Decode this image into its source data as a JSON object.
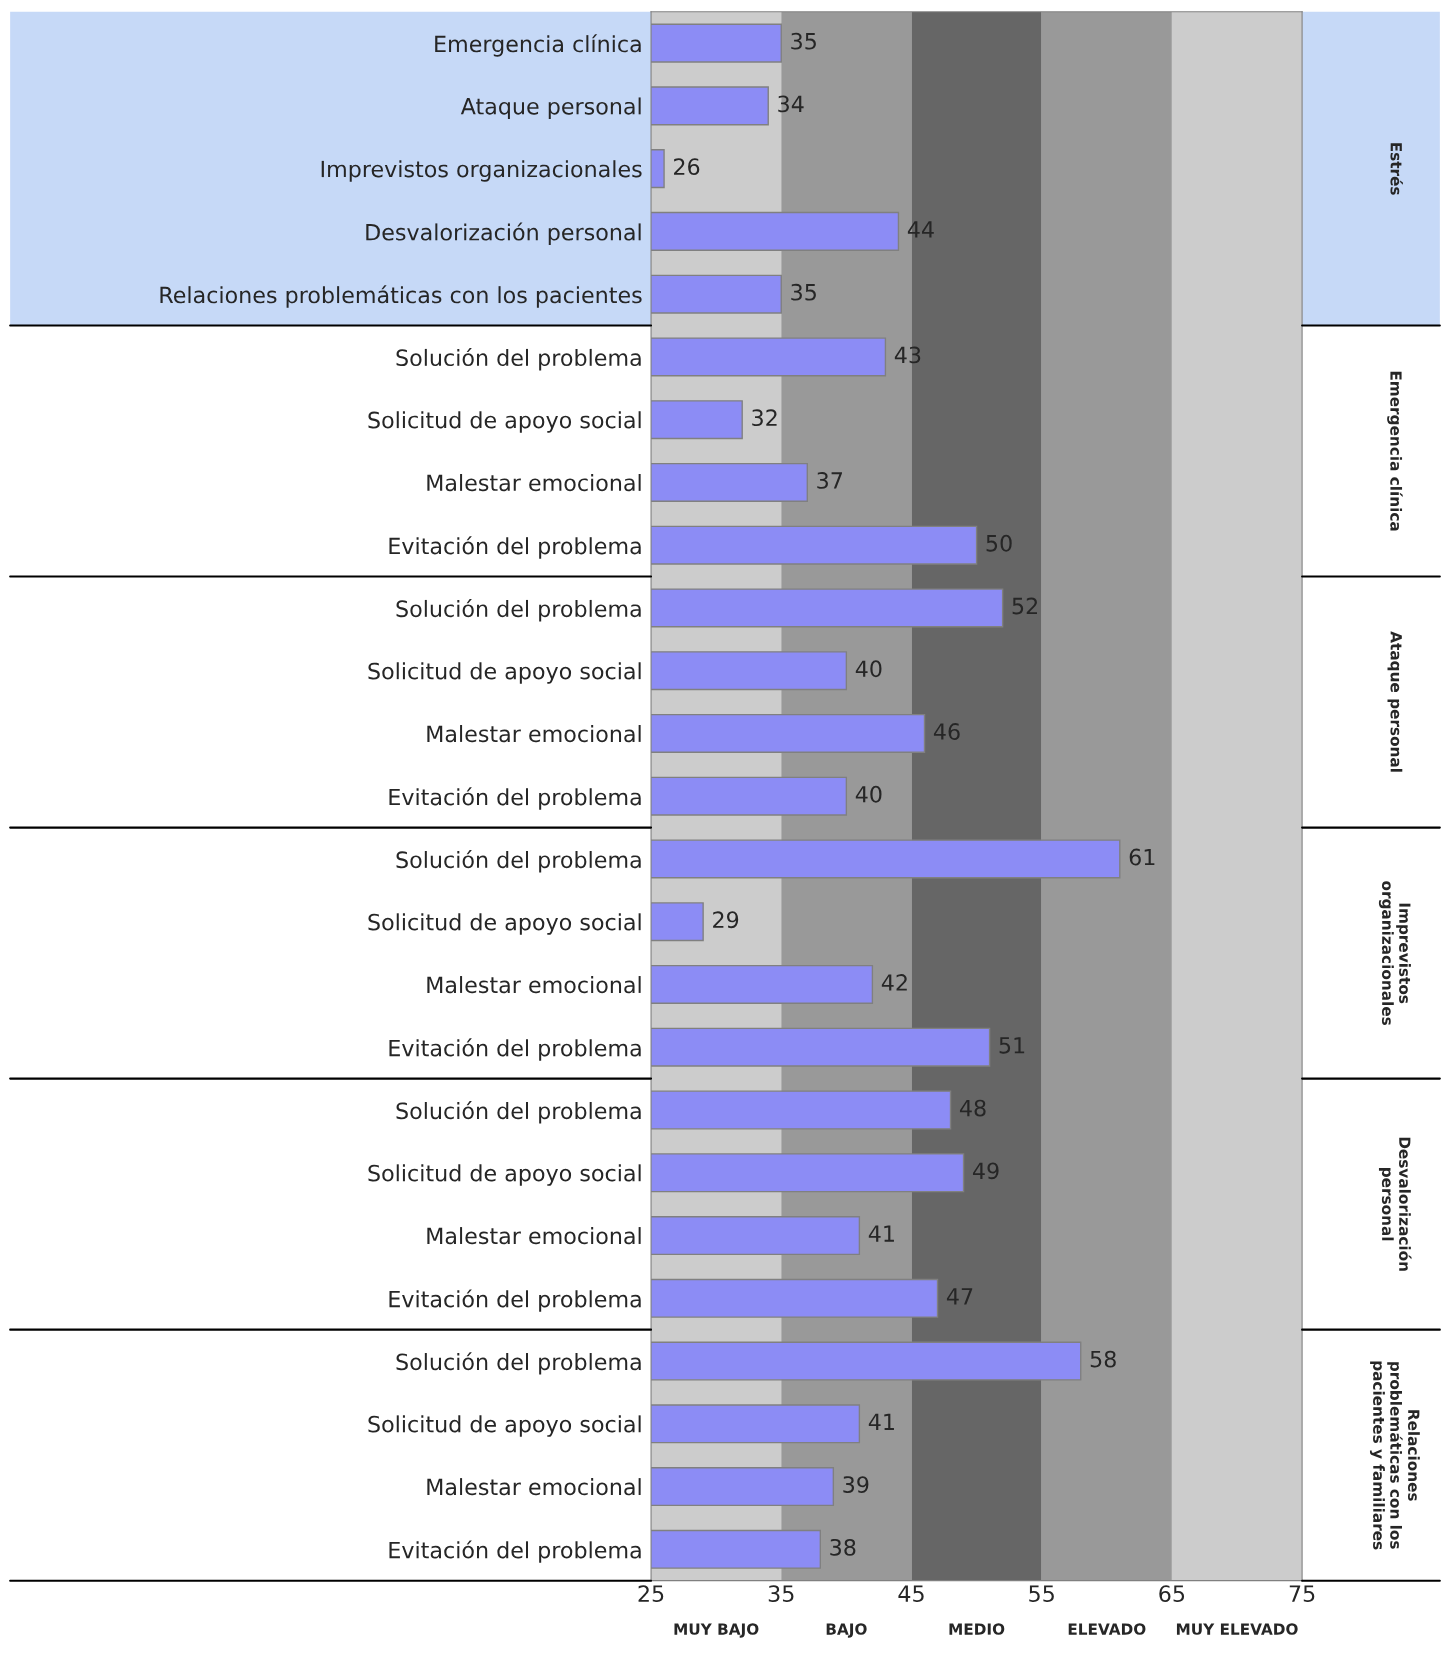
{
  "chart_data": {
    "type": "bar",
    "orientation": "horizontal",
    "categories": [
      "Emergencia clínica",
      "Ataque personal",
      "Imprevistos organizacionales",
      "Desvalorización personal",
      "Relaciones problemáticas con los pacientes",
      "Solución del problema",
      "Solicitud de apoyo social",
      "Malestar emocional",
      "Evitación del problema",
      "Solución del problema",
      "Solicitud de apoyo social",
      "Malestar emocional",
      "Evitación del problema",
      "Solución del problema",
      "Solicitud de apoyo social",
      "Malestar emocional",
      "Evitación del problema",
      "Solución del problema",
      "Solicitud de apoyo social",
      "Malestar emocional",
      "Evitación del problema",
      "Solución del problema",
      "Solicitud de apoyo social",
      "Malestar emocional",
      "Evitación del problema"
    ],
    "values": [
      35,
      34,
      26,
      44,
      35,
      43,
      32,
      37,
      50,
      52,
      40,
      46,
      40,
      61,
      29,
      42,
      51,
      48,
      49,
      41,
      47,
      58,
      41,
      39,
      38
    ],
    "color": "#8c8cf5",
    "data_labels": true,
    "xlim": [
      25,
      75
    ],
    "xticks": [
      25,
      35,
      45,
      55,
      65,
      75
    ],
    "grid": false,
    "legend": false,
    "bands": [
      {
        "axis": "x",
        "from": 25,
        "to": 35,
        "label": "MUY BAJO",
        "color": "#cccccc"
      },
      {
        "axis": "x",
        "from": 35,
        "to": 45,
        "label": "BAJO",
        "color": "#999999"
      },
      {
        "axis": "x",
        "from": 45,
        "to": 55,
        "label": "MEDIO",
        "color": "#666666"
      },
      {
        "axis": "x",
        "from": 55,
        "to": 65,
        "label": "ELEVADO",
        "color": "#999999"
      },
      {
        "axis": "x",
        "from": 65,
        "to": 75,
        "label": "MUY ELEVADO",
        "color": "#cccccc"
      }
    ],
    "annotations": [
      "Estrés",
      "Emergencia clínica",
      "Ataque personal",
      "Imprevistos\norganizacionales",
      "Desvalorización\npersonal",
      "Relaciones\nproblemáticas con los\npacientes y familiares"
    ]
  }
}
